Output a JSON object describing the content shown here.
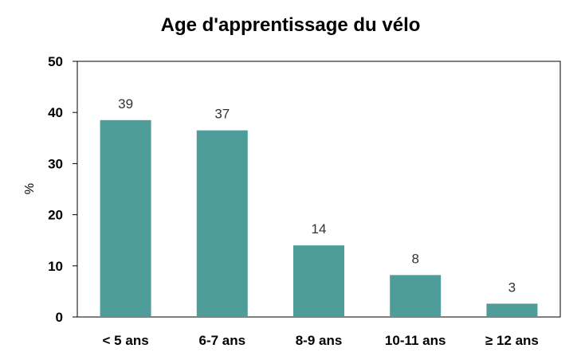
{
  "chart_data": {
    "type": "bar",
    "title": "Age d'apprentissage du vélo",
    "xlabel": "",
    "ylabel": "%",
    "categories": [
      "< 5 ans",
      "6-7 ans",
      "8-9 ans",
      "10-11 ans",
      "≥ 12 ans"
    ],
    "values": [
      38.5,
      36.5,
      14,
      8.2,
      2.6
    ],
    "data_labels": [
      "39",
      "37",
      "14",
      "8",
      "3"
    ],
    "ylim": [
      0,
      50
    ],
    "yticks": [
      "0",
      "10",
      "20",
      "30",
      "40",
      "50"
    ],
    "grid": false,
    "legend": "none",
    "colors": {
      "bar": "#4f9d9b",
      "axis": "#000000",
      "label": "#333333"
    }
  }
}
